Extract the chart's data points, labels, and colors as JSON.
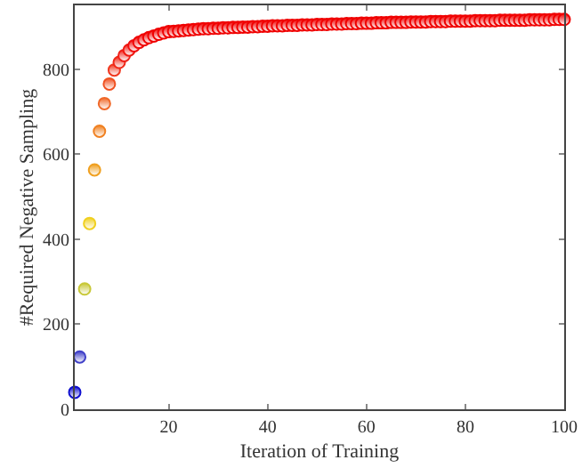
{
  "chart_data": {
    "type": "scatter",
    "xlabel": "Iteration of Training",
    "ylabel": "#Required Negative Sampling",
    "x": [
      1,
      2,
      3,
      4,
      5,
      6,
      7,
      8,
      9,
      10,
      11,
      12,
      13,
      14,
      15,
      16,
      17,
      18,
      19,
      20,
      21,
      22,
      23,
      24,
      25,
      26,
      27,
      28,
      29,
      30,
      31,
      32,
      33,
      34,
      35,
      36,
      37,
      38,
      39,
      40,
      41,
      42,
      43,
      44,
      45,
      46,
      47,
      48,
      49,
      50,
      51,
      52,
      53,
      54,
      55,
      56,
      57,
      58,
      59,
      60,
      61,
      62,
      63,
      64,
      65,
      66,
      67,
      68,
      69,
      70,
      71,
      72,
      73,
      74,
      75,
      76,
      77,
      78,
      79,
      80,
      81,
      82,
      83,
      84,
      85,
      86,
      87,
      88,
      89,
      90,
      91,
      92,
      93,
      94,
      95,
      96,
      97,
      98,
      99,
      100
    ],
    "values": [
      40,
      123,
      283,
      437,
      563,
      654,
      719,
      765,
      798,
      816,
      832,
      845,
      855,
      863,
      869,
      874,
      878,
      882,
      885,
      888,
      889,
      890,
      891,
      892,
      893,
      894,
      895,
      895,
      896,
      896,
      897,
      897,
      898,
      898,
      899,
      899,
      900,
      900,
      901,
      901,
      902,
      902,
      902,
      903,
      903,
      903,
      904,
      904,
      904,
      905,
      905,
      905,
      906,
      906,
      906,
      907,
      907,
      907,
      908,
      908,
      908,
      909,
      909,
      909,
      910,
      910,
      910,
      910,
      911,
      911,
      911,
      911,
      912,
      912,
      912,
      912,
      913,
      913,
      913,
      913,
      913,
      914,
      914,
      914,
      914,
      914,
      915,
      915,
      915,
      915,
      915,
      915,
      916,
      916,
      916,
      916,
      916,
      917,
      917,
      917
    ],
    "colors": [
      "#1010d0",
      "#4040c8",
      "#c8c838",
      "#f0d020",
      "#f0a020",
      "#f08020",
      "#f06828",
      "#f05020",
      "#f03820",
      "#f02818",
      "#f02018",
      "#f01810",
      "#f01010",
      "#f00808",
      "#f00808",
      "#f00000",
      "#f00000",
      "#f00000",
      "#f00000",
      "#f00000",
      "#f00000",
      "#f00000",
      "#f00000",
      "#f00000",
      "#f00000",
      "#f00000",
      "#f00000",
      "#f00000",
      "#f00000",
      "#f00000",
      "#f00000",
      "#f00000",
      "#f00000",
      "#f00000",
      "#f00000",
      "#f00000",
      "#f00000",
      "#f00000",
      "#f00000",
      "#f00000",
      "#f00000",
      "#f00000",
      "#f00000",
      "#f00000",
      "#f00000",
      "#f00000",
      "#f00000",
      "#f00000",
      "#f00000",
      "#f00000",
      "#f00000",
      "#f00000",
      "#f00000",
      "#f00000",
      "#f00000",
      "#f00000",
      "#f00000",
      "#f00000",
      "#f00000",
      "#f00000",
      "#f00000",
      "#f00000",
      "#f00000",
      "#f00000",
      "#f00000",
      "#f00000",
      "#f00000",
      "#f00000",
      "#f00000",
      "#f00000",
      "#f00000",
      "#f00000",
      "#f00000",
      "#f00000",
      "#f00000",
      "#f00000",
      "#f00000",
      "#f00000",
      "#f00000",
      "#f00000",
      "#f00000",
      "#f00000",
      "#f00000",
      "#f00000",
      "#f00000",
      "#f00000",
      "#f00000",
      "#f00000",
      "#f00000",
      "#f00000",
      "#f00000",
      "#f00000",
      "#f00000",
      "#f00000",
      "#f00000",
      "#f00000",
      "#f00000",
      "#f00000",
      "#f00000",
      "#f00000"
    ],
    "xlim": [
      1,
      100
    ],
    "xticks": [
      20,
      40,
      60,
      80,
      100
    ],
    "ylim": [
      0,
      950
    ],
    "yticks": [
      0,
      200,
      400,
      600,
      800
    ],
    "legend": false,
    "marker": "circle"
  }
}
